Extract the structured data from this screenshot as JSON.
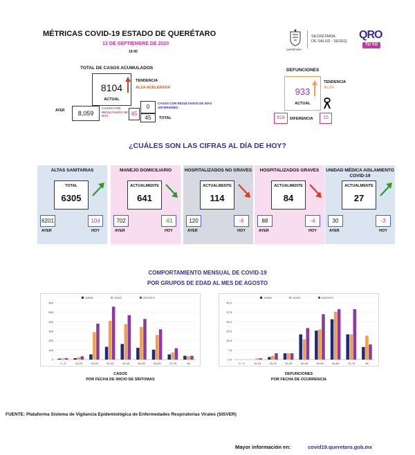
{
  "header": {
    "title": "MÉTRICAS COVID-19 ESTADO DE QUERÉTARO",
    "date": "13 DE SEPTIEMBRE DE 2020",
    "time": "19:00",
    "state_label": "QUERÉTARO",
    "secretaria": "SECRETARÍA",
    "secretaria2": "DE SALUD - SESEQ",
    "logo_main": "QRO",
    "logo_sub": "TU YO"
  },
  "cases": {
    "title": "TOTAL DE CASOS ACUMULADOS",
    "actual_value": "8104",
    "actual_label": "ACTUAL",
    "trend_label": "TENDENCIA",
    "trend_value": "ALZA ACELERADA",
    "ayer_label": "AYER",
    "ayer_value": "8,059",
    "hoy_label": "CASOS CON RESULTADOS DE HOY",
    "hoy_value": "45",
    "prev_label": "CASOS CON RESULTADOS DE DÍAS ANTERIORES",
    "prev_value": "0",
    "total_value": "45",
    "total_label": "TOTAL"
  },
  "deaths": {
    "title": "DEFUNCIONES",
    "actual_value": "933",
    "actual_label": "ACTUAL",
    "trend_label": "TENDENCIA",
    "trend_value": "ALZA",
    "prev_value": "918",
    "diff_label": "DIFERENCIA",
    "diff_value": "15"
  },
  "question": "¿CUÁLES SON LAS CIFRAS AL DÍA DE HOY?",
  "cards": [
    {
      "title": "ALTAS SANITARIAS",
      "big_label": "TOTAL",
      "big_value": "6305",
      "ayer": "6201",
      "hoy": "104",
      "ayer_label": "AYER",
      "hoy_label": "HOY",
      "bg": "#dbe4f1",
      "hoy_color": "#c2399b"
    },
    {
      "title": "MANEJO DOMICILIARIO",
      "big_label": "ACTUALMENTE",
      "big_value": "641",
      "ayer": "702",
      "hoy": "-61",
      "ayer_label": "AYER",
      "hoy_label": "HOY",
      "bg": "#f8dcef",
      "hoy_color": "#2a8c2a"
    },
    {
      "title": "HOSPITALIZADOS NO GRAVES",
      "big_label": "ACTUALMENTE",
      "big_value": "114",
      "ayer": "120",
      "hoy": "-6",
      "ayer_label": "AYER",
      "hoy_label": "HOY",
      "bg": "#d6d8e2",
      "hoy_color": "#c2399b"
    },
    {
      "title": "HOSPITALIZADOS GRAVES",
      "big_label": "ACTUALMENTE",
      "big_value": "84",
      "ayer": "88",
      "hoy": "-4",
      "ayer_label": "AYER",
      "hoy_label": "HOY",
      "bg": "#f8dcef",
      "hoy_color": "#c2399b"
    },
    {
      "title": "UNIDAD MÉDICA AISLAMIENTO COVID-19",
      "big_label": "ACTUALMENTE",
      "big_value": "27",
      "ayer": "30",
      "hoy": "-3",
      "ayer_label": "AYER",
      "hoy_label": "HOY",
      "bg": "#dbe4f1",
      "hoy_color": "#c2399b"
    }
  ],
  "monthly": {
    "title1": "COMPORTAMIENTO MENSUAL DE COVID-19",
    "title2": "POR GRUPOS DE EDAD AL MES DE AGOSTO"
  },
  "chart_data": [
    {
      "type": "bar",
      "categories": [
        "0 - 9",
        "10-19",
        "20-29",
        "30-39",
        "40-49",
        "50-59",
        "60-69",
        "70-79",
        "80"
      ],
      "series": [
        {
          "name": "JUNIO",
          "values": [
            10,
            15,
            55,
            135,
            165,
            125,
            105,
            55,
            40
          ],
          "color": "#1f2b7a"
        },
        {
          "name": "JULIO",
          "values": [
            12,
            25,
            290,
            410,
            375,
            345,
            260,
            75,
            35
          ],
          "color": "#f0a050"
        },
        {
          "name": "AGOSTO",
          "values": [
            15,
            35,
            380,
            560,
            470,
            430,
            320,
            120,
            40
          ],
          "color": "#8a3aa8"
        }
      ],
      "ylim": [
        0,
        600
      ],
      "yticks": [
        "0",
        "100",
        "200",
        "300",
        "400",
        "500",
        "600"
      ],
      "caption1": "CASOS",
      "caption2": "POR FECHA DE INICIO DE SÍNTOMAS"
    },
    {
      "type": "bar",
      "categories": [
        "0 - 9",
        "10-19",
        "20-29",
        "30-39",
        "40-49",
        "50-59",
        "60-69",
        "70-79",
        "80"
      ],
      "series": [
        {
          "name": "JUNIO",
          "values": [
            0,
            0,
            2,
            5,
            20,
            23,
            32,
            20,
            10
          ],
          "color": "#1f2b7a"
        },
        {
          "name": "JULIO",
          "values": [
            0,
            1,
            3,
            5,
            16,
            24,
            38,
            20,
            19
          ],
          "color": "#f0a050"
        },
        {
          "name": "AGOSTO",
          "values": [
            0,
            1,
            5,
            5,
            25,
            36,
            40,
            40,
            12
          ],
          "color": "#8a3aa8"
        }
      ],
      "ylim": [
        0,
        45
      ],
      "yticks": [
        "0.0",
        "7.5",
        "15.0",
        "22.5",
        "30.0",
        "37.5",
        "45.0"
      ],
      "caption1": "DEFUNCIONES",
      "caption2": "POR FECHA DE OCURRENCIA"
    }
  ],
  "footer": {
    "source": "FUENTE: Plataforma Sistema  de Vigilancia Epidemiológica de Enfermedades Respiratorias Virales (SISVER)",
    "more_label": "Mayor información en:",
    "url": "covid19.queretaro.gob.mx"
  }
}
